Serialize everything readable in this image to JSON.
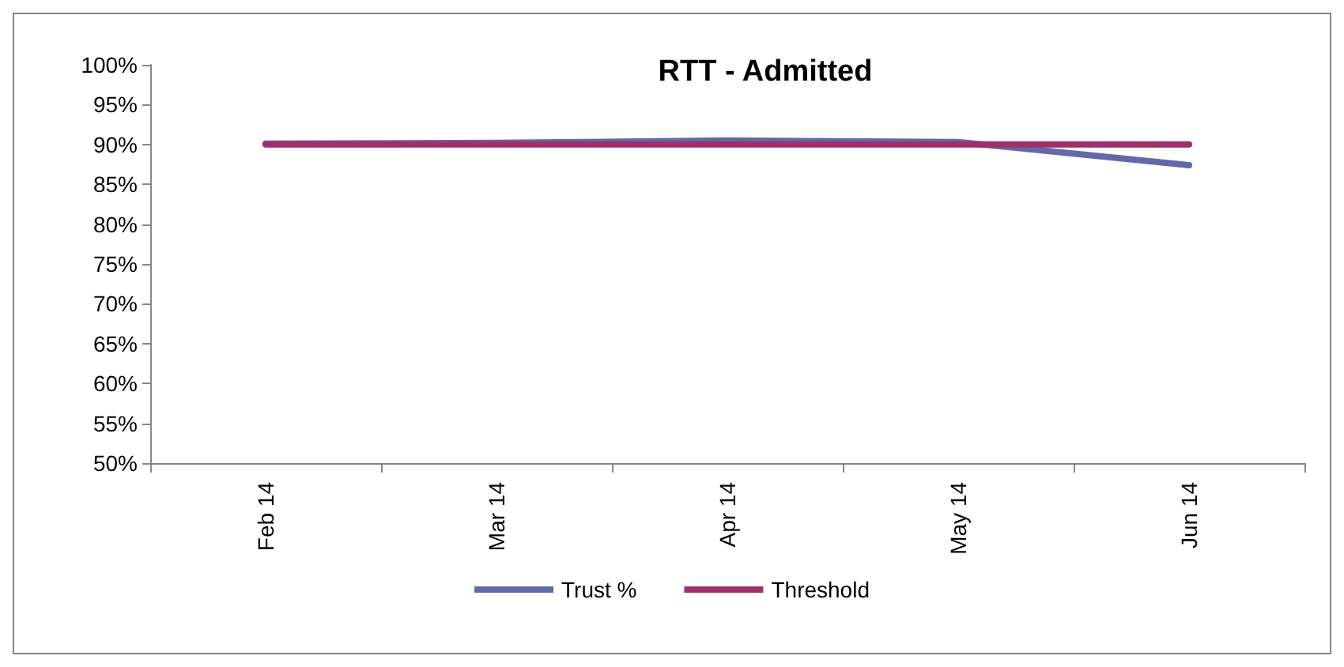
{
  "chart_data": {
    "type": "line",
    "title": "RTT - Admitted",
    "categories": [
      "Feb 14",
      "Mar 14",
      "Apr 14",
      "May 14",
      "Jun 14"
    ],
    "series": [
      {
        "name": "Trust %",
        "color": "#6468a8",
        "values": [
          90.1,
          90.2,
          90.5,
          90.3,
          87.4
        ]
      },
      {
        "name": "Threshold",
        "color": "#a0306a",
        "values": [
          90,
          90,
          90,
          90,
          90
        ]
      }
    ],
    "ylim": [
      50,
      100
    ],
    "yticks": [
      {
        "value": 50,
        "label": "50%"
      },
      {
        "value": 55,
        "label": "55%"
      },
      {
        "value": 60,
        "label": "60%"
      },
      {
        "value": 65,
        "label": "65%"
      },
      {
        "value": 70,
        "label": "70%"
      },
      {
        "value": 75,
        "label": "75%"
      },
      {
        "value": 80,
        "label": "80%"
      },
      {
        "value": 85,
        "label": "85%"
      },
      {
        "value": 90,
        "label": "90%"
      },
      {
        "value": 95,
        "label": "95%"
      },
      {
        "value": 100,
        "label": "100%"
      }
    ],
    "grid": false,
    "legend": "bottom",
    "marker": "none",
    "line_style": "solid"
  }
}
